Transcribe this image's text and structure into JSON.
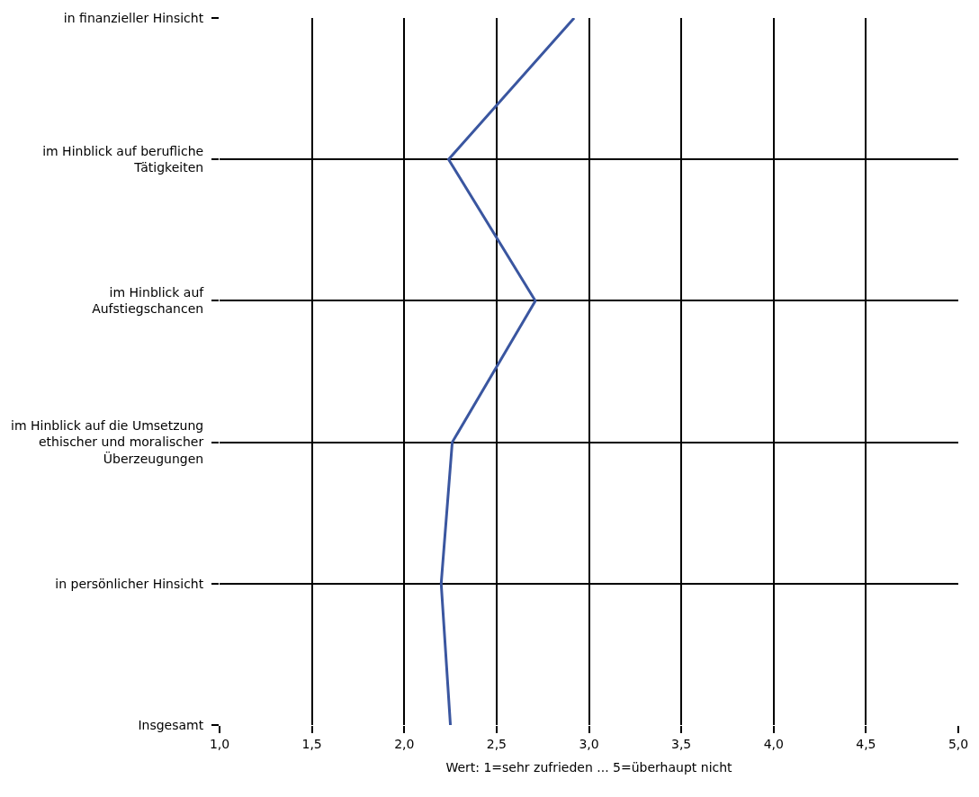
{
  "chart_data": {
    "type": "line",
    "orientation": "horizontal",
    "xlabel": "Wert: 1=sehr zufrieden ... 5=überhaupt nicht",
    "categories": [
      "in finanzieller Hinsicht",
      "im Hinblick auf berufliche\nTätigkeiten",
      "im Hinblick auf\nAufstiegschancen",
      "im Hinblick auf die Umsetzung\nethischer und moralischer\nÜberzeugungen",
      "in persönlicher Hinsicht",
      "Insgesamt"
    ],
    "series": [
      {
        "color": "#3a56a0",
        "values": [
          2.92,
          2.24,
          2.71,
          2.26,
          2.2,
          2.25
        ]
      }
    ],
    "xlim": [
      1,
      5
    ],
    "xticks": [
      {
        "value": 1,
        "label": "1,0"
      },
      {
        "value": 1.5,
        "label": "1,5"
      },
      {
        "value": 2,
        "label": "2,0"
      },
      {
        "value": 2.5,
        "label": "2,5"
      },
      {
        "value": 3,
        "label": "3,0"
      },
      {
        "value": 3.5,
        "label": "3,5"
      },
      {
        "value": 4,
        "label": "4,0"
      },
      {
        "value": 4.5,
        "label": "4,5"
      },
      {
        "value": 5,
        "label": "5,0"
      }
    ],
    "grid": true,
    "legend": false,
    "marker": "none",
    "line_style": "solid"
  }
}
